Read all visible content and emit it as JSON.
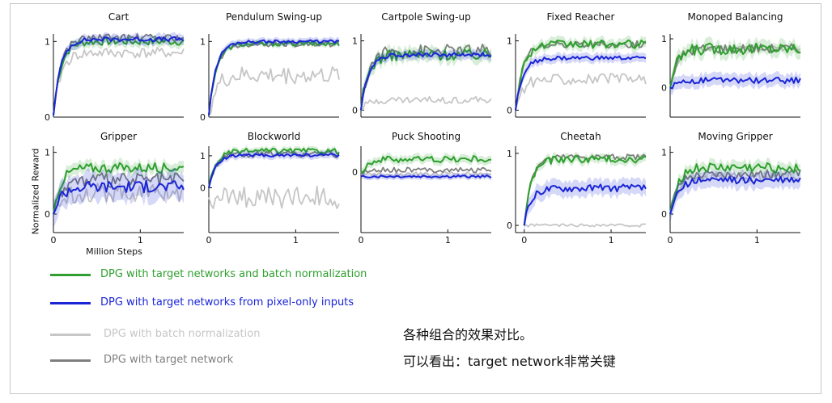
{
  "legend": {
    "items": [
      {
        "label": "DPG with target networks and batch normalization",
        "color": "#2fa02f"
      },
      {
        "label": "DPG with target networks from pixel-only inputs",
        "color": "#1a25d6"
      },
      {
        "label": "DPG with batch normalization",
        "color": "#c6c6c6"
      },
      {
        "label": "DPG with target network",
        "color": "#7f7f7f"
      }
    ]
  },
  "note": {
    "line1": "各种组合的效果对比。",
    "line2": "可以看出：target network非常关键"
  },
  "axes": {
    "ylabel": "Normalized Reward",
    "xlabel": "Million Steps"
  },
  "chart_data": [
    {
      "type": "line",
      "title": "Cart",
      "yticks": [
        "0",
        "1"
      ],
      "xticks": [],
      "ylim": [
        0,
        1.1
      ],
      "xlim": [
        0,
        1.5
      ],
      "series": [
        {
          "name": "DPG with target networks and batch normalization",
          "level": 1.0,
          "jitter": 0.05
        },
        {
          "name": "DPG with target networks from pixel-only inputs",
          "level": 1.03,
          "jitter": 0.03
        },
        {
          "name": "DPG with batch normalization",
          "level": 0.85,
          "jitter": 0.07
        },
        {
          "name": "DPG with target network",
          "level": 1.05,
          "jitter": 0.05
        }
      ]
    },
    {
      "type": "line",
      "title": "Pendulum Swing-up",
      "yticks": [
        "0",
        "1"
      ],
      "xticks": [],
      "ylim": [
        0,
        1.1
      ],
      "xlim": [
        0,
        1.5
      ],
      "series": [
        {
          "name": "DPG with target networks and batch normalization",
          "level": 0.97,
          "jitter": 0.03
        },
        {
          "name": "DPG with target networks from pixel-only inputs",
          "level": 1.0,
          "jitter": 0.02
        },
        {
          "name": "DPG with batch normalization",
          "level": 0.55,
          "jitter": 0.12
        },
        {
          "name": "DPG with target network",
          "level": 0.97,
          "jitter": 0.04
        }
      ]
    },
    {
      "type": "line",
      "title": "Cartpole Swing-up",
      "yticks": [
        "0",
        "1"
      ],
      "xticks": [],
      "ylim": [
        -0.1,
        1.1
      ],
      "xlim": [
        0,
        1.5
      ],
      "series": [
        {
          "name": "DPG with target networks and batch normalization",
          "level": 0.8,
          "jitter": 0.08
        },
        {
          "name": "DPG with target networks from pixel-only inputs",
          "level": 0.8,
          "jitter": 0.03
        },
        {
          "name": "DPG with batch normalization",
          "level": 0.15,
          "jitter": 0.05
        },
        {
          "name": "DPG with target network",
          "level": 0.85,
          "jitter": 0.1
        }
      ]
    },
    {
      "type": "line",
      "title": "Fixed Reacher",
      "yticks": [
        "0",
        "1"
      ],
      "xticks": [],
      "ylim": [
        -0.1,
        1.1
      ],
      "xlim": [
        0,
        1.5
      ],
      "series": [
        {
          "name": "DPG with target networks and batch normalization",
          "level": 0.95,
          "jitter": 0.06
        },
        {
          "name": "DPG with target networks from pixel-only inputs",
          "level": 0.75,
          "jitter": 0.03
        },
        {
          "name": "DPG with batch normalization",
          "level": 0.45,
          "jitter": 0.08
        },
        {
          "name": "DPG with target network",
          "level": 0.95,
          "jitter": 0.05
        }
      ]
    },
    {
      "type": "line",
      "title": "Monoped Balancing",
      "yticks": [
        "0",
        "1"
      ],
      "xticks": [],
      "ylim": [
        -0.6,
        1.1
      ],
      "xlim": [
        0,
        1.5
      ],
      "series": [
        {
          "name": "DPG with target networks and batch normalization",
          "level": 0.8,
          "jitter": 0.12
        },
        {
          "name": "DPG with target networks from pixel-only inputs",
          "level": 0.15,
          "jitter": 0.06
        },
        {
          "name": "DPG with batch normalization",
          "level": 0.8,
          "jitter": 0.05
        },
        {
          "name": "DPG with target network",
          "level": 0.8,
          "jitter": 0.1
        }
      ]
    },
    {
      "type": "line",
      "title": "Gripper",
      "yticks": [
        "0",
        "1"
      ],
      "xticks": [
        "0",
        "1"
      ],
      "ylim": [
        -0.3,
        1.1
      ],
      "xlim": [
        0,
        1.5
      ],
      "series": [
        {
          "name": "DPG with target networks and batch normalization",
          "level": 0.75,
          "jitter": 0.08
        },
        {
          "name": "DPG with target networks from pixel-only inputs",
          "level": 0.45,
          "jitter": 0.1
        },
        {
          "name": "DPG with batch normalization",
          "level": 0.35,
          "jitter": 0.15
        },
        {
          "name": "DPG with target network",
          "level": 0.55,
          "jitter": 0.12
        }
      ]
    },
    {
      "type": "line",
      "title": "Blockworld",
      "yticks": [
        "0",
        "1"
      ],
      "xticks": [
        "0",
        "1"
      ],
      "ylim": [
        -1.4,
        1.3
      ],
      "xlim": [
        0,
        1.5
      ],
      "series": [
        {
          "name": "DPG with target networks and batch normalization",
          "level": 1.15,
          "jitter": 0.08
        },
        {
          "name": "DPG with target networks from pixel-only inputs",
          "level": 1.02,
          "jitter": 0.05
        },
        {
          "name": "DPG with batch normalization",
          "level": -0.3,
          "jitter": 0.35
        },
        {
          "name": "DPG with target network",
          "level": 1.05,
          "jitter": 0.1
        }
      ]
    },
    {
      "type": "line",
      "title": "Puck Shooting",
      "yticks": [
        "0"
      ],
      "xticks": [
        "0",
        "1"
      ],
      "ylim": [
        -1.4,
        0.6
      ],
      "xlim": [
        0,
        1.5
      ],
      "series": [
        {
          "name": "DPG with target networks and batch normalization",
          "level": 0.3,
          "jitter": 0.08
        },
        {
          "name": "DPG with target networks from pixel-only inputs",
          "level": -0.1,
          "jitter": 0.03
        },
        {
          "name": "DPG with batch normalization",
          "level": -0.05,
          "jitter": 0.06
        },
        {
          "name": "DPG with target network",
          "level": 0.05,
          "jitter": 0.06
        }
      ]
    },
    {
      "type": "line",
      "title": "Cheetah",
      "yticks": [
        "0",
        "1"
      ],
      "xticks": [
        "0",
        "1"
      ],
      "ylim": [
        -0.1,
        1.1
      ],
      "xlim": [
        -0.1,
        1.4
      ],
      "series": [
        {
          "name": "DPG with target networks and batch normalization",
          "level": 0.92,
          "jitter": 0.05
        },
        {
          "name": "DPG with target networks from pixel-only inputs",
          "level": 0.52,
          "jitter": 0.05
        },
        {
          "name": "DPG with batch normalization",
          "level": 0.0,
          "jitter": 0.02
        },
        {
          "name": "DPG with target network",
          "level": 0.95,
          "jitter": 0.04
        }
      ]
    },
    {
      "type": "line",
      "title": "Moving Gripper",
      "yticks": [
        "0",
        "1"
      ],
      "xticks": [
        "0",
        "1"
      ],
      "ylim": [
        -0.3,
        1.1
      ],
      "xlim": [
        0,
        1.5
      ],
      "series": [
        {
          "name": "DPG with target networks and batch normalization",
          "level": 0.75,
          "jitter": 0.08
        },
        {
          "name": "DPG with target networks from pixel-only inputs",
          "level": 0.55,
          "jitter": 0.06
        },
        {
          "name": "DPG with batch normalization",
          "level": 0.6,
          "jitter": 0.08
        },
        {
          "name": "DPG with target network",
          "level": 0.65,
          "jitter": 0.07
        }
      ]
    }
  ]
}
